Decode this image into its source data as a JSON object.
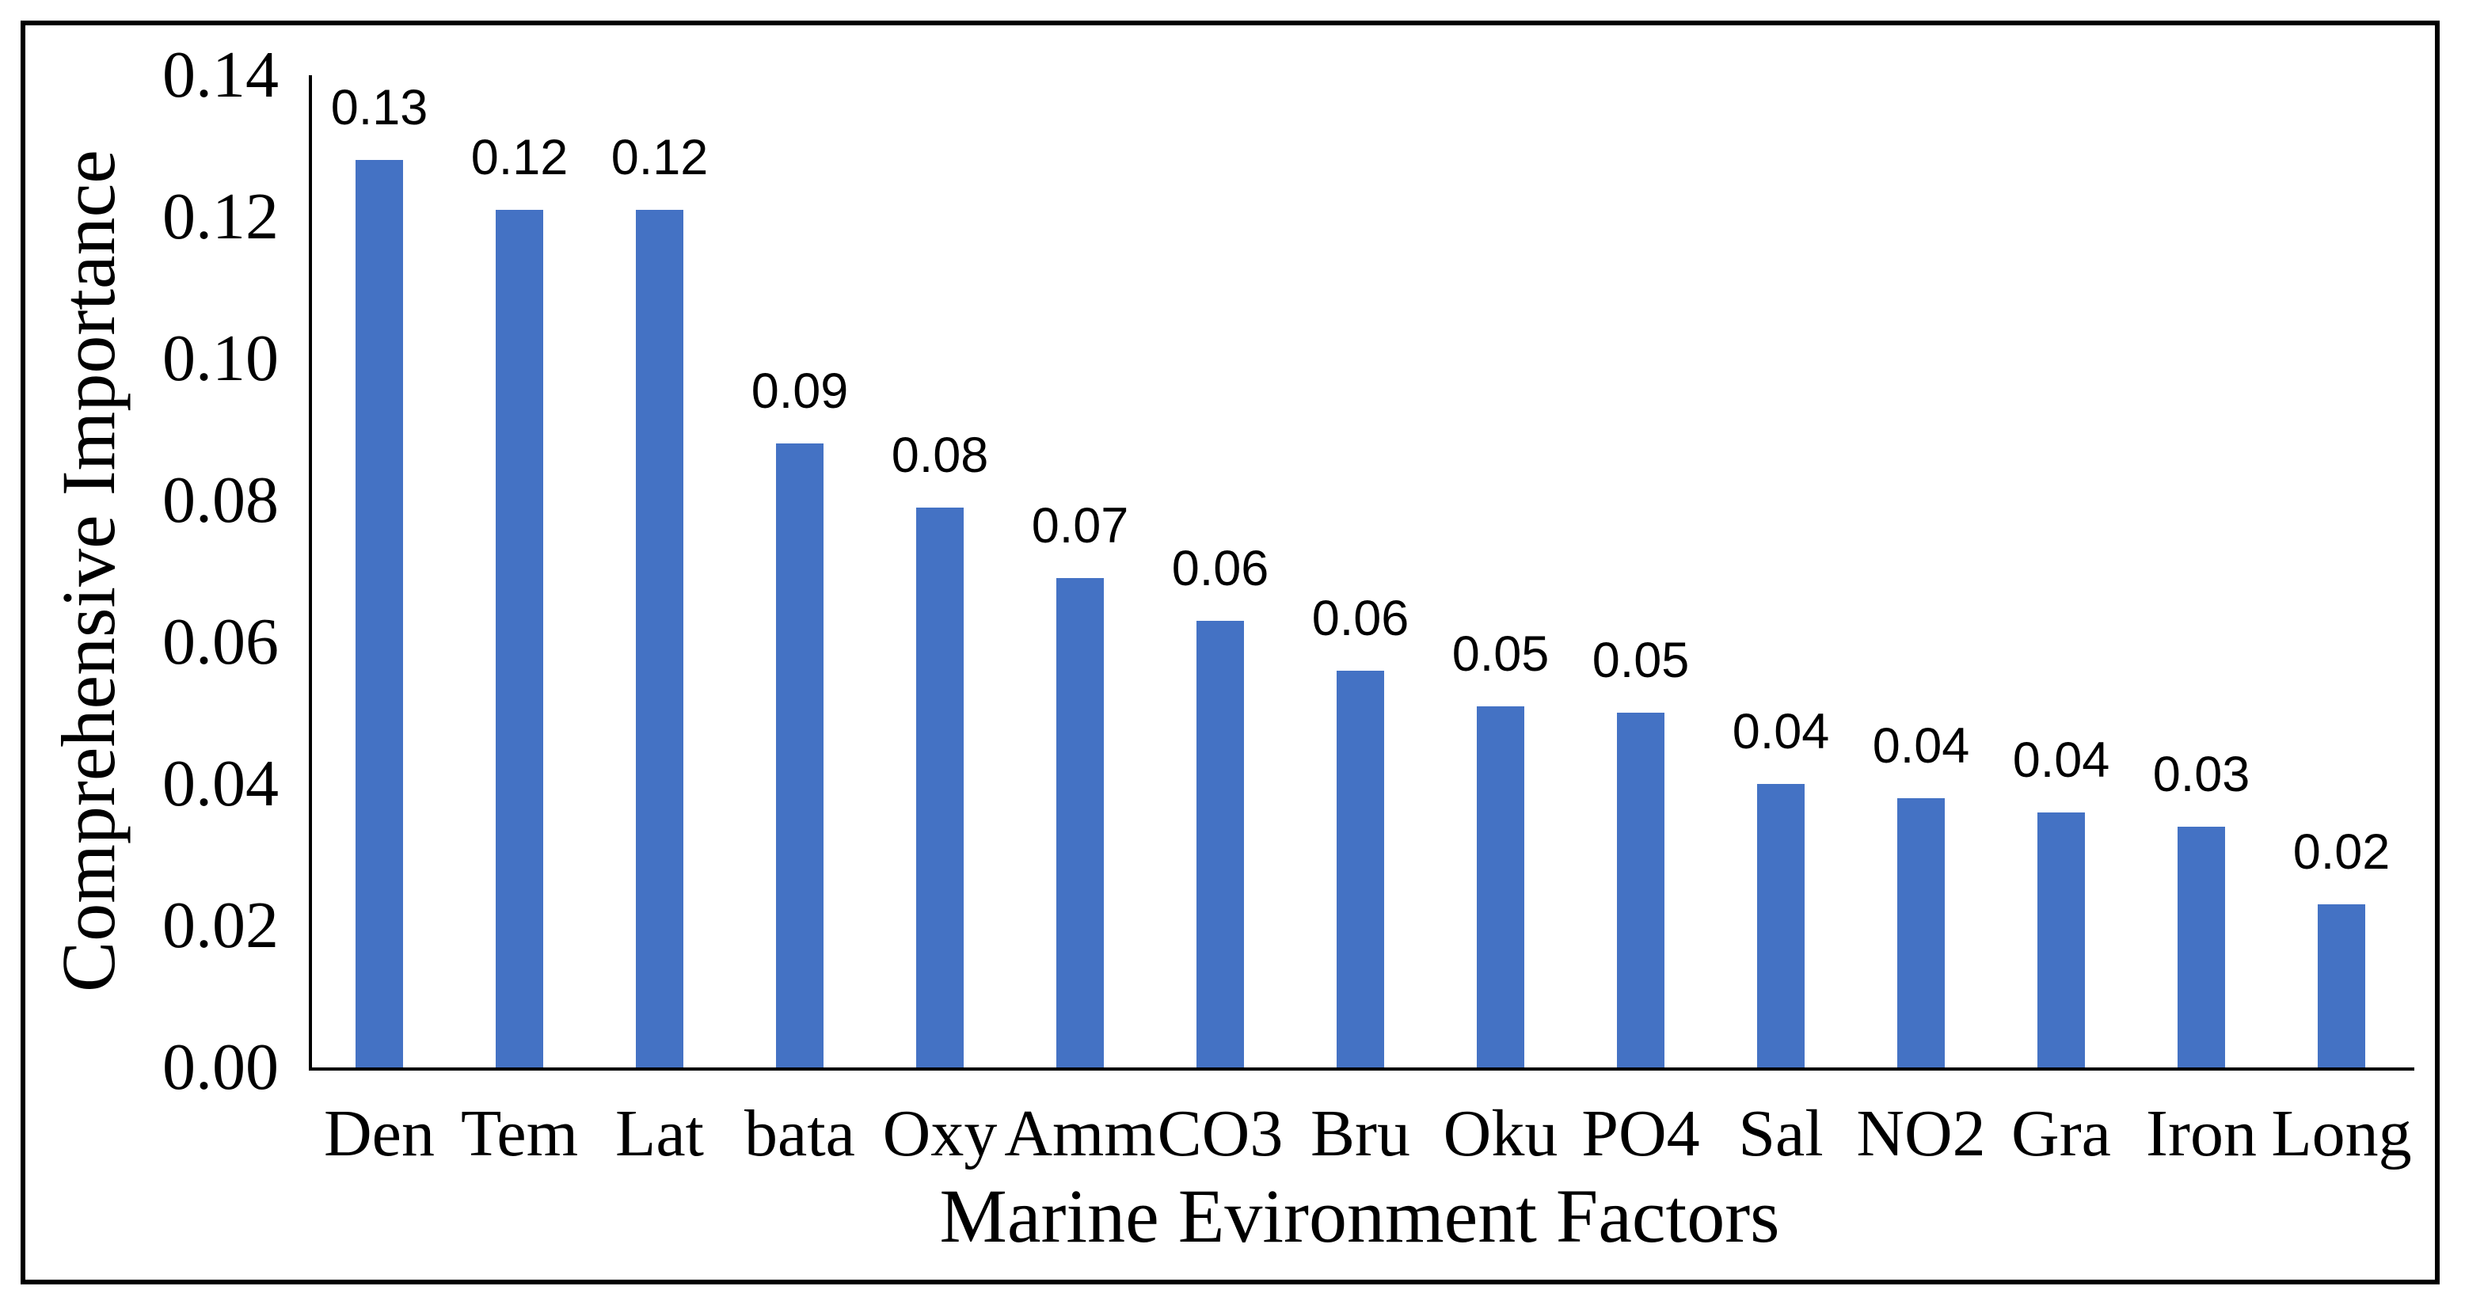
{
  "chart_data": {
    "type": "bar",
    "title": "",
    "categories": [
      "Den",
      "Tem",
      "Lat",
      "bata",
      "Oxy",
      "Amm",
      "CO3",
      "Bru",
      "Oku",
      "PO4",
      "Sal",
      "NO2",
      "Gra",
      "Iron",
      "Long"
    ],
    "values": [
      0.128,
      0.121,
      0.121,
      0.088,
      0.079,
      0.069,
      0.063,
      0.056,
      0.051,
      0.05,
      0.04,
      0.038,
      0.036,
      0.034,
      0.023
    ],
    "data_labels": [
      "0.13",
      "0.12",
      "0.12",
      "0.09",
      "0.08",
      "0.07",
      "0.06",
      "0.06",
      "0.05",
      "0.05",
      "0.04",
      "0.04",
      "0.04",
      "0.03",
      "0.02"
    ],
    "xlabel": "Marine Evironment Factors",
    "ylabel": "Comprehensive Importance",
    "ylim": [
      0,
      0.14
    ],
    "ytick_labels": [
      "0.00",
      "0.02",
      "0.04",
      "0.06",
      "0.08",
      "0.10",
      "0.12",
      "0.14"
    ],
    "grid": false,
    "legend": false,
    "bar_color": "#4472C4",
    "axis_color": "#000000",
    "frame_color": "#000000"
  }
}
